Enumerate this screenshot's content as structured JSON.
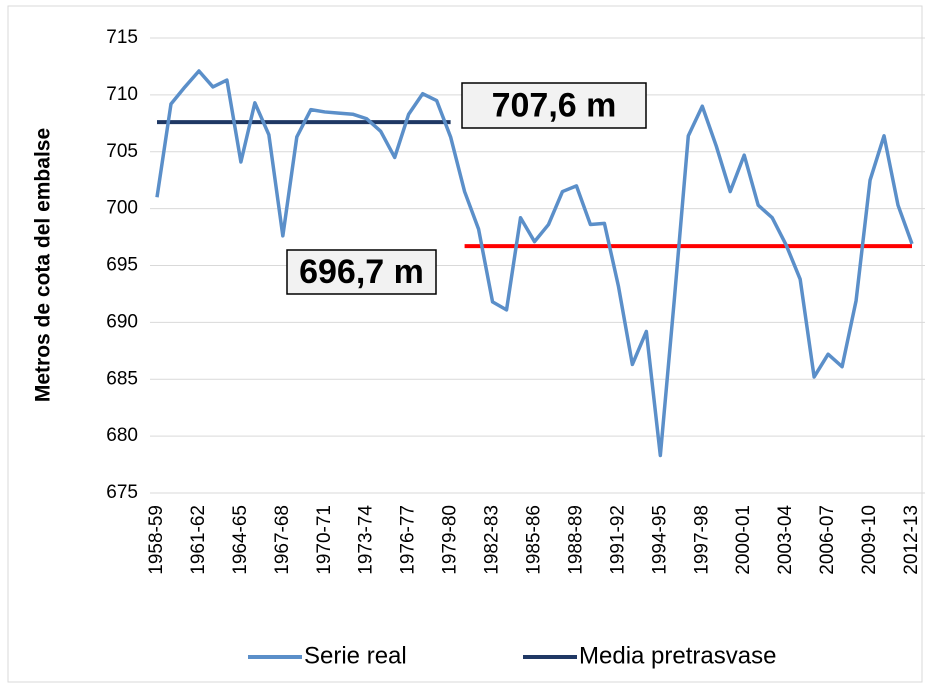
{
  "chart_data": {
    "type": "line",
    "y_axis_label": "Metros de cota del embalse",
    "categories": [
      "1958-59",
      null,
      null,
      "1961-62",
      null,
      null,
      "1964-65",
      null,
      null,
      "1967-68",
      null,
      null,
      "1970-71",
      null,
      null,
      "1973-74",
      null,
      null,
      "1976-77",
      null,
      null,
      "1979-80",
      null,
      null,
      "1982-83",
      null,
      null,
      "1985-86",
      null,
      null,
      "1988-89",
      null,
      null,
      "1991-92",
      null,
      null,
      "1994-95",
      null,
      null,
      "1997-98",
      null,
      null,
      "2000-01",
      null,
      null,
      "2003-04",
      null,
      null,
      "2006-07",
      null,
      null,
      "2009-10",
      null,
      null,
      "2012-13"
    ],
    "series": [
      {
        "name": "Serie real",
        "color": "#5b8fc9",
        "values": [
          701,
          709.2,
          710.7,
          712.1,
          710.7,
          711.3,
          704.1,
          709.3,
          706.5,
          697.6,
          706.3,
          708.7,
          708.5,
          708.4,
          708.3,
          707.9,
          706.8,
          704.5,
          708.3,
          710.1,
          709.5,
          706.3,
          701.5,
          698.2,
          691.8,
          691.1,
          699.2,
          697.1,
          698.6,
          701.5,
          702,
          698.6,
          698.7,
          693.2,
          686.3,
          689.2,
          678.3,
          692,
          706.4,
          709,
          705.5,
          701.5,
          704.7,
          700.3,
          699.2,
          696.8,
          693.8,
          685.2,
          687.2,
          686.1,
          691.9,
          702.5,
          706.4,
          700.3,
          696.9
        ]
      },
      {
        "name": "Media pretrasvase",
        "color": "#1f3864",
        "values": [
          707.6,
          707.6,
          707.6,
          707.6,
          707.6,
          707.6,
          707.6,
          707.6,
          707.6,
          707.6,
          707.6,
          707.6,
          707.6,
          707.6,
          707.6,
          707.6,
          707.6,
          707.6,
          707.6,
          707.6,
          707.6,
          707.6,
          null,
          null,
          null,
          null,
          null,
          null,
          null,
          null,
          null,
          null,
          null,
          null,
          null,
          null,
          null,
          null,
          null,
          null,
          null,
          null,
          null,
          null,
          null,
          null,
          null,
          null,
          null,
          null,
          null,
          null,
          null,
          null,
          null
        ]
      },
      {
        "color": "#ff0000",
        "values": [
          null,
          null,
          null,
          null,
          null,
          null,
          null,
          null,
          null,
          null,
          null,
          null,
          null,
          null,
          null,
          null,
          null,
          null,
          null,
          null,
          null,
          null,
          696.7,
          696.7,
          696.7,
          696.7,
          696.7,
          696.7,
          696.7,
          696.7,
          696.7,
          696.7,
          696.7,
          696.7,
          696.7,
          696.7,
          696.7,
          696.7,
          696.7,
          696.7,
          696.7,
          696.7,
          696.7,
          696.7,
          696.7,
          696.7,
          696.7,
          696.7,
          696.7,
          696.7,
          696.7,
          696.7,
          696.7,
          696.7,
          696.7
        ]
      }
    ],
    "annotations": [
      "707,6 m",
      "696,7 m"
    ],
    "ylim": [
      675,
      715
    ],
    "yticks": [
      675,
      680,
      685,
      690,
      695,
      700,
      705,
      710,
      715
    ],
    "grid": true,
    "legend": "bottom"
  }
}
